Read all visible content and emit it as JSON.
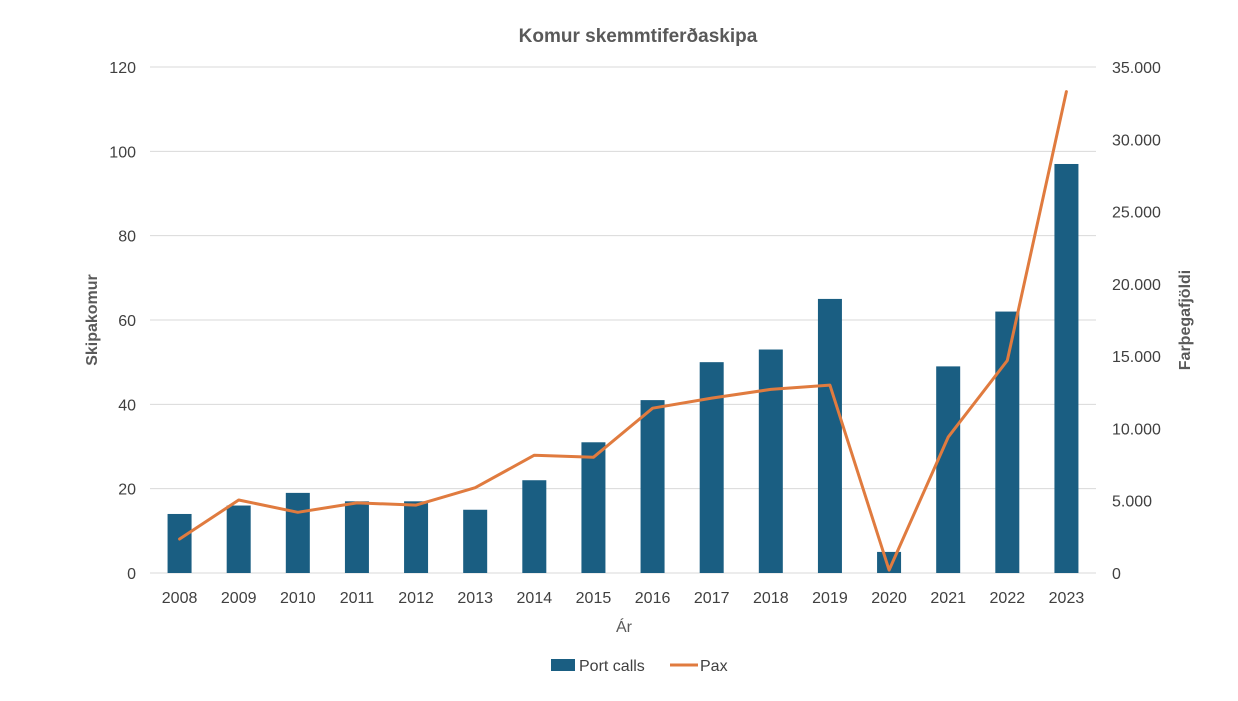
{
  "chart_data": {
    "type": "bar+line",
    "title": "Komur skemmtiferðaskipa",
    "xlabel": "Ár",
    "ylabel_left": "Skipakomur",
    "ylabel_right": "Farþegafjöldi",
    "categories": [
      "2008",
      "2009",
      "2010",
      "2011",
      "2012",
      "2013",
      "2014",
      "2015",
      "2016",
      "2017",
      "2018",
      "2019",
      "2020",
      "2021",
      "2022",
      "2023"
    ],
    "series": [
      {
        "name": "Port calls",
        "type": "bar",
        "axis": "left",
        "color": "#1a5e82",
        "values": [
          14,
          16,
          19,
          17,
          17,
          15,
          22,
          31,
          41,
          50,
          53,
          65,
          5,
          49,
          62,
          97
        ]
      },
      {
        "name": "Pax",
        "type": "line",
        "axis": "right",
        "color": "#e07b3f",
        "values": [
          2350,
          5050,
          4200,
          4850,
          4700,
          5900,
          8150,
          8000,
          11400,
          12100,
          12700,
          13000,
          200,
          9400,
          14700,
          33300
        ]
      }
    ],
    "ylim_left": [
      0,
      120
    ],
    "yticks_left": [
      "0",
      "20",
      "40",
      "60",
      "80",
      "100",
      "120"
    ],
    "ylim_right": [
      0,
      35000
    ],
    "yticks_right": [
      "0",
      "5.000",
      "10.000",
      "15.000",
      "20.000",
      "25.000",
      "30.000",
      "35.000"
    ],
    "grid": true,
    "legend_position": "bottom"
  }
}
